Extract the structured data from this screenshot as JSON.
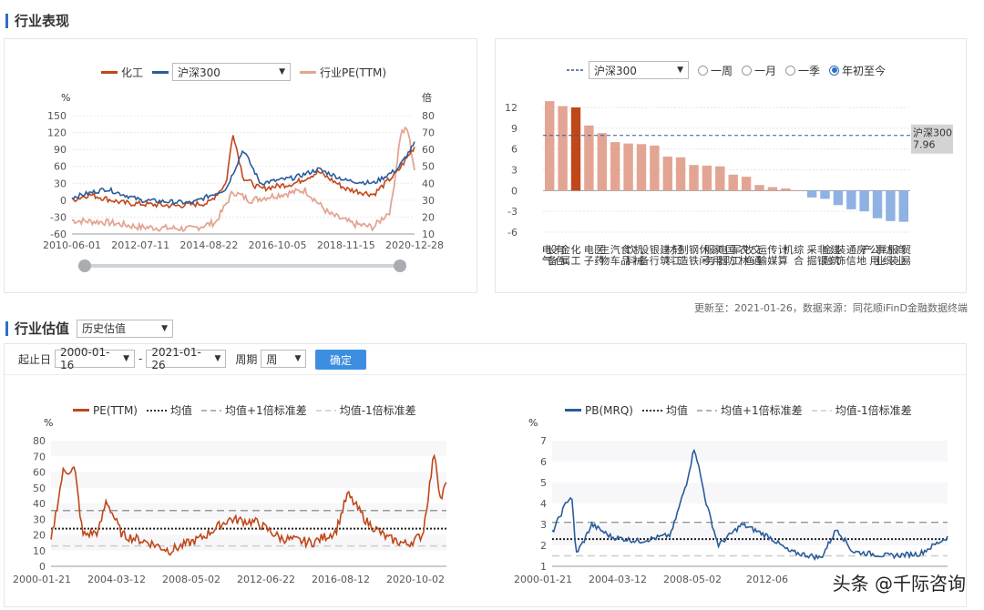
{
  "section1": {
    "title": "行业表现"
  },
  "perf": {
    "legend": {
      "industry": "化工",
      "index_select": "沪深300",
      "pe": "行业PE(TTM)"
    },
    "left_unit": "%",
    "right_unit": "倍",
    "left_ticks": [
      "150",
      "120",
      "90",
      "60",
      "30",
      "0",
      "-30",
      "-60"
    ],
    "right_ticks": [
      "80",
      "70",
      "60",
      "50",
      "40",
      "30",
      "20",
      "10"
    ],
    "x_ticks": [
      "2010-06-01",
      "2012-07-11",
      "2014-08-22",
      "2016-10-05",
      "2018-11-15",
      "2020-12-28"
    ],
    "colors": {
      "industry": "#c0471a",
      "index": "#2b5c9a",
      "pe": "#e3a593"
    }
  },
  "rank": {
    "legend": {
      "ref": "沪深300",
      "select": "沪深300"
    },
    "periods": [
      "一周",
      "一月",
      "一季",
      "年初至今"
    ],
    "selected_period": "年初至今",
    "ref_label": "沪深300",
    "ref_value": "7.96",
    "y_ticks": [
      "12",
      "9",
      "6",
      "3",
      "0",
      "-3",
      "-6"
    ],
    "colors": {
      "pos": "#e3a593",
      "highlight": "#c0471a",
      "neg": "#8fb1e3"
    }
  },
  "chart_data": [
    {
      "type": "bar",
      "title": "",
      "categories": [
        "电气设备",
        "有色金属",
        "化工",
        "电子",
        "医药生物",
        "汽车",
        "食品饮料",
        "机械设备",
        "银行",
        "建筑材料",
        "轻工制造",
        "钢铁",
        "休闲服务",
        "家用电器",
        "国防军工",
        "农林牧渔",
        "交通运输",
        "传媒",
        "计算机",
        "综合",
        "采掘",
        "非银金融",
        "建筑装饰",
        "通信",
        "房地产",
        "公用事业",
        "纺织服装",
        "商业贸易"
      ],
      "values": [
        12.9,
        12.2,
        12.0,
        9.4,
        8.3,
        7.0,
        6.8,
        6.7,
        6.5,
        4.9,
        4.8,
        3.7,
        3.6,
        3.5,
        2.3,
        2.0,
        0.8,
        0.5,
        0.3,
        0.0,
        -1.0,
        -1.2,
        -2.1,
        -2.7,
        -3.0,
        -4.0,
        -4.4,
        -4.5
      ],
      "highlight": "化工",
      "reference": {
        "name": "沪深300",
        "value": 7.96
      },
      "ylim": [
        -6,
        13
      ]
    },
    {
      "type": "line",
      "series": [
        {
          "name": "PE(TTM)"
        }
      ],
      "reference_lines": [
        "均值",
        "均值+1倍标准差",
        "均值-1倍标准差"
      ],
      "mean": 24.0,
      "plus_1sd": 35.5,
      "minus_1sd": 13.0,
      "ylim": [
        0,
        80
      ],
      "ylabel": "%"
    },
    {
      "type": "line",
      "series": [
        {
          "name": "PB(MRQ)"
        }
      ],
      "reference_lines": [
        "均值",
        "均值+1倍标准差",
        "均值-1倍标准差"
      ],
      "mean": 2.3,
      "plus_1sd": 3.1,
      "minus_1sd": 1.5,
      "ylim": [
        1,
        7
      ],
      "ylabel": "%"
    }
  ],
  "rank_footer": "更新至：2021-01-26，数据来源：同花顺iFinD金融数据终端",
  "section2": {
    "title": "行业估值",
    "select": "历史估值"
  },
  "controls": {
    "start_label": "起止日",
    "start_date": "2000-01-16",
    "dash": "-",
    "end_date": "2021-01-26",
    "period_label": "周期",
    "period_value": "周",
    "confirm": "确定"
  },
  "pe_chart": {
    "legend": {
      "line": "PE(TTM)",
      "mean": "均值",
      "plus": "均值+1倍标准差",
      "minus": "均值-1倍标准差"
    },
    "unit": "%",
    "y_ticks": [
      "80",
      "70",
      "60",
      "50",
      "40",
      "30",
      "20",
      "10",
      "0"
    ],
    "x_ticks": [
      "2000-01-21",
      "2004-03-12",
      "2008-05-02",
      "2012-06-22",
      "2016-08-12",
      "2020-10-02"
    ],
    "color": "#c0471a"
  },
  "pb_chart": {
    "legend": {
      "line": "PB(MRQ)",
      "mean": "均值",
      "plus": "均值+1倍标准差",
      "minus": "均值-1倍标准差"
    },
    "unit": "%",
    "y_ticks": [
      "7",
      "6",
      "5",
      "4",
      "3",
      "2",
      "1"
    ],
    "x_ticks": [
      "2000-01-21",
      "2004-03-12",
      "2008-05-02",
      "2012-06"
    ],
    "color": "#2b5c9a"
  },
  "watermark": "头条 @千际咨询"
}
